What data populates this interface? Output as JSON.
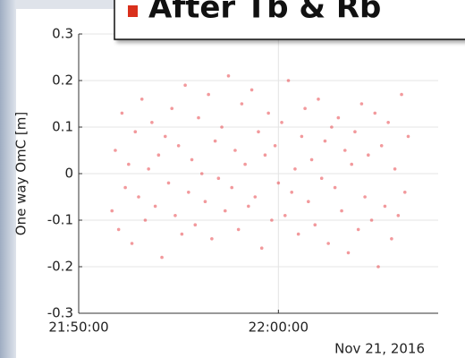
{
  "chart_data": {
    "type": "scatter",
    "title": "After Tb & Rb",
    "ylabel": "One way OmC [m]",
    "annotation": "Nov 21, 2016",
    "color": "#e8464a",
    "grid": true,
    "xlim": [
      "21:50:00",
      "22:08:00"
    ],
    "xticks": [
      "21:50:00",
      "22:00:00"
    ],
    "ylim": [
      -0.3,
      0.3
    ],
    "yticks": [
      0.3,
      0.2,
      0.1,
      0,
      -0.1,
      -0.2,
      -0.3
    ],
    "x": [
      "21:51:40",
      "21:51:50",
      "21:52:00",
      "21:52:10",
      "21:52:20",
      "21:52:30",
      "21:52:40",
      "21:52:50",
      "21:53:00",
      "21:53:10",
      "21:53:20",
      "21:53:30",
      "21:53:40",
      "21:53:50",
      "21:54:00",
      "21:54:10",
      "21:54:20",
      "21:54:30",
      "21:54:40",
      "21:54:50",
      "21:55:00",
      "21:55:10",
      "21:55:20",
      "21:55:30",
      "21:55:40",
      "21:55:50",
      "21:56:00",
      "21:56:10",
      "21:56:20",
      "21:56:30",
      "21:56:40",
      "21:56:50",
      "21:57:00",
      "21:57:10",
      "21:57:20",
      "21:57:30",
      "21:57:40",
      "21:57:50",
      "21:58:00",
      "21:58:10",
      "21:58:20",
      "21:58:30",
      "21:58:40",
      "21:58:50",
      "21:59:00",
      "21:59:10",
      "21:59:20",
      "21:59:30",
      "21:59:40",
      "21:59:50",
      "22:00:00",
      "22:00:10",
      "22:00:20",
      "22:00:30",
      "22:00:40",
      "22:00:50",
      "22:01:00",
      "22:01:10",
      "22:01:20",
      "22:01:30",
      "22:01:40",
      "22:01:50",
      "22:02:00",
      "22:02:10",
      "22:02:20",
      "22:02:30",
      "22:02:40",
      "22:02:50",
      "22:03:00",
      "22:03:10",
      "22:03:20",
      "22:03:30",
      "22:03:40",
      "22:03:50",
      "22:04:00",
      "22:04:10",
      "22:04:20",
      "22:04:30",
      "22:04:40",
      "22:04:50",
      "22:05:00",
      "22:05:10",
      "22:05:20",
      "22:05:30",
      "22:05:40",
      "22:05:50",
      "22:06:00",
      "22:06:10",
      "22:06:20",
      "22:06:30"
    ],
    "values": [
      -0.08,
      0.05,
      -0.12,
      0.13,
      -0.03,
      0.02,
      -0.15,
      0.09,
      -0.05,
      0.16,
      -0.1,
      0.01,
      0.11,
      -0.07,
      0.04,
      -0.18,
      0.08,
      -0.02,
      0.14,
      -0.09,
      0.06,
      -0.13,
      0.19,
      -0.04,
      0.03,
      -0.11,
      0.12,
      0.0,
      -0.06,
      0.17,
      -0.14,
      0.07,
      -0.01,
      0.1,
      -0.08,
      0.21,
      -0.03,
      0.05,
      -0.12,
      0.15,
      0.02,
      -0.07,
      0.18,
      -0.05,
      0.09,
      -0.16,
      0.04,
      0.13,
      -0.1,
      0.06,
      -0.02,
      0.11,
      -0.09,
      0.2,
      -0.04,
      0.01,
      -0.13,
      0.08,
      0.14,
      -0.06,
      0.03,
      -0.11,
      0.16,
      -0.01,
      0.07,
      -0.15,
      0.1,
      -0.03,
      0.12,
      -0.08,
      0.05,
      -0.17,
      0.02,
      0.09,
      -0.12,
      0.15,
      -0.05,
      0.04,
      -0.1,
      0.13,
      -0.2,
      0.06,
      -0.07,
      0.11,
      -0.14,
      0.01,
      -0.09,
      0.17,
      -0.04,
      0.08
    ]
  }
}
